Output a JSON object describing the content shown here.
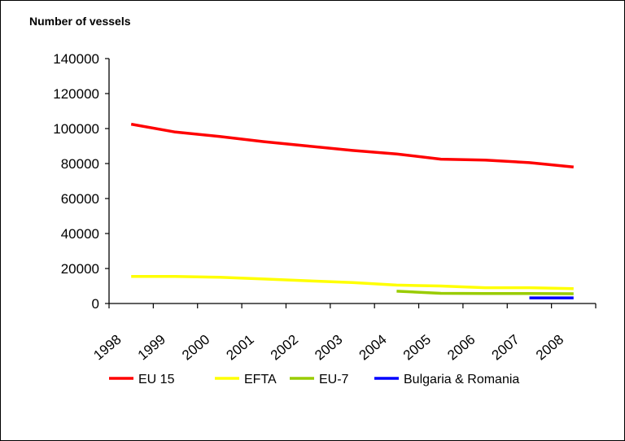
{
  "chart_data": {
    "type": "line",
    "title": "",
    "ylabel": "Number of vessels",
    "xlabel": "",
    "ylim": [
      0,
      140000
    ],
    "yticks": [
      0,
      20000,
      40000,
      60000,
      80000,
      100000,
      120000,
      140000
    ],
    "ytick_labels": [
      "0",
      "20000",
      "40000",
      "60000",
      "80000",
      "100000",
      "120000",
      "140000"
    ],
    "categories": [
      "1998",
      "1999",
      "2000",
      "2001",
      "2002",
      "2003",
      "2004",
      "2005",
      "2006",
      "2007",
      "2008"
    ],
    "grid": false,
    "legend": "bottom",
    "series": [
      {
        "name": "EU 15",
        "color": "#ff0000",
        "x": [
          1998.5,
          1999.5,
          2000.5,
          2001.5,
          2002.5,
          2003.5,
          2004.5,
          2005.5,
          2006.5,
          2007.5,
          2008.5
        ],
        "values": [
          102500,
          98000,
          95500,
          92500,
          90000,
          87500,
          85500,
          82500,
          82000,
          80500,
          78000
        ]
      },
      {
        "name": "EFTA",
        "color": "#ffff00",
        "x": [
          1998.5,
          1999.5,
          2000.5,
          2001.5,
          2002.5,
          2003.5,
          2004.5,
          2005.5,
          2006.5,
          2007.5,
          2008.5
        ],
        "values": [
          15500,
          15500,
          15000,
          14000,
          13000,
          12000,
          10500,
          10000,
          9000,
          9000,
          8500
        ]
      },
      {
        "name": "EU-7",
        "color": "#99cc00",
        "x": [
          2004.5,
          2005.5,
          2006.5,
          2007.5,
          2008.5
        ],
        "values": [
          7000,
          5800,
          5700,
          5700,
          5600
        ]
      },
      {
        "name": "Bulgaria & Romania",
        "color": "#0000ff",
        "x": [
          2007.5,
          2008.5
        ],
        "values": [
          3200,
          3200
        ]
      }
    ]
  }
}
